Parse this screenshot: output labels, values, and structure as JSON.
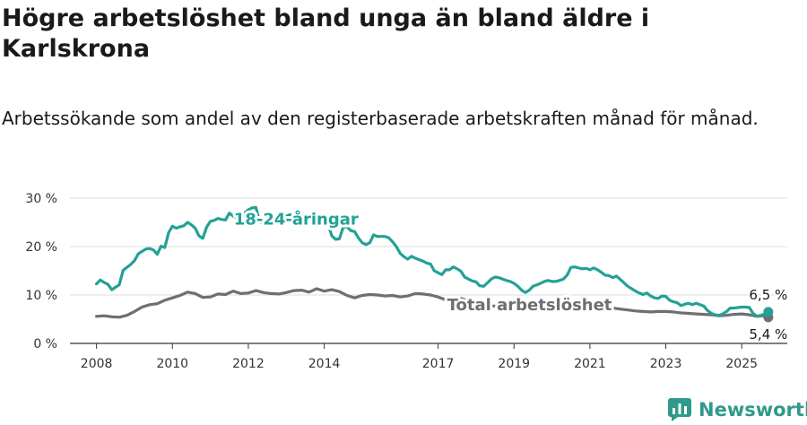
{
  "title": "Högre arbetslöshet bland unga än bland äldre i Karlskrona",
  "subtitle": "Arbetssökande som andel av den registerbaserade arbetskraften månad för månad.",
  "brand": {
    "name": "Newsworthy",
    "icon": "newsworthy-logo-icon",
    "color": "#2f9a8c"
  },
  "chart_data": {
    "type": "line",
    "x_unit": "year",
    "xlim": [
      2007.3,
      2026.2
    ],
    "ylim": [
      0,
      30
    ],
    "y_ticks": [
      0,
      10,
      20,
      30
    ],
    "y_tick_labels": [
      "0 %",
      "10 %",
      "20 %",
      "30 %"
    ],
    "x_ticks": [
      2008,
      2010,
      2012,
      2014,
      2017,
      2019,
      2021,
      2023,
      2025
    ],
    "x_tick_labels": [
      "2008",
      "2010",
      "2012",
      "2014",
      "2017",
      "2019",
      "2021",
      "2023",
      "2025"
    ],
    "grid": true,
    "series": [
      {
        "name": "18-24-åringar",
        "label": "18-24-åringar",
        "color": "#22a295",
        "points": [
          [
            2008.0,
            12.3
          ],
          [
            2008.1,
            13.1
          ],
          [
            2008.2,
            12.6
          ],
          [
            2008.3,
            12.2
          ],
          [
            2008.4,
            11.1
          ],
          [
            2008.5,
            11.6
          ],
          [
            2008.6,
            12.1
          ],
          [
            2008.7,
            15.1
          ],
          [
            2008.8,
            15.7
          ],
          [
            2008.9,
            16.3
          ],
          [
            2009.0,
            17.1
          ],
          [
            2009.1,
            18.5
          ],
          [
            2009.2,
            19.0
          ],
          [
            2009.3,
            19.5
          ],
          [
            2009.4,
            19.6
          ],
          [
            2009.5,
            19.3
          ],
          [
            2009.6,
            18.4
          ],
          [
            2009.7,
            20.1
          ],
          [
            2009.8,
            19.8
          ],
          [
            2009.9,
            22.9
          ],
          [
            2010.0,
            24.2
          ],
          [
            2010.1,
            23.8
          ],
          [
            2010.2,
            24.1
          ],
          [
            2010.3,
            24.3
          ],
          [
            2010.4,
            25.0
          ],
          [
            2010.5,
            24.5
          ],
          [
            2010.6,
            23.8
          ],
          [
            2010.7,
            22.2
          ],
          [
            2010.8,
            21.7
          ],
          [
            2010.9,
            24.0
          ],
          [
            2011.0,
            25.2
          ],
          [
            2011.1,
            25.4
          ],
          [
            2011.2,
            25.8
          ],
          [
            2011.3,
            25.6
          ],
          [
            2011.4,
            25.5
          ],
          [
            2011.5,
            26.9
          ],
          [
            2011.6,
            26.3
          ],
          [
            2011.7,
            25.9
          ],
          [
            2011.8,
            24.3
          ],
          [
            2011.9,
            26.9
          ],
          [
            2012.0,
            27.6
          ],
          [
            2012.1,
            28.0
          ],
          [
            2012.2,
            28.1
          ],
          [
            2012.3,
            25.0
          ],
          [
            2012.4,
            24.8
          ],
          [
            2012.5,
            24.8
          ],
          [
            2012.6,
            24.9
          ],
          [
            2012.7,
            25.3
          ],
          [
            2012.8,
            25.6
          ],
          [
            2012.9,
            26.1
          ],
          [
            2013.0,
            26.3
          ],
          [
            2013.1,
            26.6
          ],
          [
            2013.2,
            26.1
          ],
          [
            2013.3,
            25.8
          ],
          [
            2013.4,
            26.2
          ],
          [
            2013.5,
            25.1
          ],
          [
            2013.6,
            25.3
          ],
          [
            2013.7,
            25.1
          ],
          [
            2013.8,
            24.4
          ],
          [
            2013.9,
            24.9
          ],
          [
            2014.0,
            25.5
          ],
          [
            2014.1,
            24.7
          ],
          [
            2014.2,
            22.2
          ],
          [
            2014.3,
            21.5
          ],
          [
            2014.4,
            21.6
          ],
          [
            2014.5,
            24.0
          ],
          [
            2014.6,
            24.1
          ],
          [
            2014.7,
            23.3
          ],
          [
            2014.8,
            23.1
          ],
          [
            2014.9,
            21.8
          ],
          [
            2015.0,
            20.8
          ],
          [
            2015.1,
            20.4
          ],
          [
            2015.2,
            20.8
          ],
          [
            2015.3,
            22.4
          ],
          [
            2015.4,
            22.1
          ],
          [
            2015.5,
            22.1
          ],
          [
            2015.6,
            22.1
          ],
          [
            2015.7,
            21.8
          ],
          [
            2015.8,
            21.0
          ],
          [
            2015.9,
            20.0
          ],
          [
            2016.0,
            18.6
          ],
          [
            2016.1,
            17.9
          ],
          [
            2016.2,
            17.4
          ],
          [
            2016.3,
            18.0
          ],
          [
            2016.4,
            17.6
          ],
          [
            2016.5,
            17.3
          ],
          [
            2016.6,
            17.0
          ],
          [
            2016.7,
            16.6
          ],
          [
            2016.8,
            16.4
          ],
          [
            2016.9,
            15.0
          ],
          [
            2017.0,
            14.6
          ],
          [
            2017.1,
            14.2
          ],
          [
            2017.2,
            15.2
          ],
          [
            2017.3,
            15.2
          ],
          [
            2017.4,
            15.8
          ],
          [
            2017.5,
            15.4
          ],
          [
            2017.6,
            14.9
          ],
          [
            2017.7,
            13.7
          ],
          [
            2017.8,
            13.3
          ],
          [
            2017.9,
            12.9
          ],
          [
            2018.0,
            12.7
          ],
          [
            2018.1,
            11.9
          ],
          [
            2018.2,
            11.8
          ],
          [
            2018.3,
            12.5
          ],
          [
            2018.4,
            13.3
          ],
          [
            2018.5,
            13.7
          ],
          [
            2018.6,
            13.6
          ],
          [
            2018.7,
            13.3
          ],
          [
            2018.8,
            13.0
          ],
          [
            2018.9,
            12.8
          ],
          [
            2019.0,
            12.4
          ],
          [
            2019.1,
            11.8
          ],
          [
            2019.2,
            11.0
          ],
          [
            2019.3,
            10.5
          ],
          [
            2019.4,
            11.0
          ],
          [
            2019.5,
            11.8
          ],
          [
            2019.6,
            12.1
          ],
          [
            2019.7,
            12.4
          ],
          [
            2019.8,
            12.8
          ],
          [
            2019.9,
            13.0
          ],
          [
            2020.0,
            12.8
          ],
          [
            2020.1,
            12.8
          ],
          [
            2020.2,
            13.0
          ],
          [
            2020.3,
            13.3
          ],
          [
            2020.4,
            14.1
          ],
          [
            2020.5,
            15.7
          ],
          [
            2020.6,
            15.8
          ],
          [
            2020.7,
            15.6
          ],
          [
            2020.8,
            15.4
          ],
          [
            2020.9,
            15.5
          ],
          [
            2021.0,
            15.2
          ],
          [
            2021.1,
            15.6
          ],
          [
            2021.2,
            15.2
          ],
          [
            2021.3,
            14.7
          ],
          [
            2021.4,
            14.1
          ],
          [
            2021.5,
            14.0
          ],
          [
            2021.6,
            13.6
          ],
          [
            2021.7,
            13.9
          ],
          [
            2021.8,
            13.2
          ],
          [
            2021.9,
            12.5
          ],
          [
            2022.0,
            11.8
          ],
          [
            2022.1,
            11.3
          ],
          [
            2022.2,
            10.8
          ],
          [
            2022.3,
            10.4
          ],
          [
            2022.4,
            10.1
          ],
          [
            2022.5,
            10.4
          ],
          [
            2022.6,
            9.8
          ],
          [
            2022.7,
            9.4
          ],
          [
            2022.8,
            9.3
          ],
          [
            2022.9,
            9.8
          ],
          [
            2023.0,
            9.7
          ],
          [
            2023.1,
            8.9
          ],
          [
            2023.2,
            8.6
          ],
          [
            2023.3,
            8.4
          ],
          [
            2023.4,
            7.8
          ],
          [
            2023.5,
            8.1
          ],
          [
            2023.6,
            8.3
          ],
          [
            2023.7,
            8.0
          ],
          [
            2023.8,
            8.3
          ],
          [
            2023.9,
            8.0
          ],
          [
            2024.0,
            7.7
          ],
          [
            2024.1,
            6.8
          ],
          [
            2024.2,
            6.2
          ],
          [
            2024.3,
            5.9
          ],
          [
            2024.4,
            5.8
          ],
          [
            2024.5,
            6.1
          ],
          [
            2024.6,
            6.6
          ],
          [
            2024.7,
            7.3
          ],
          [
            2024.8,
            7.3
          ],
          [
            2024.9,
            7.4
          ],
          [
            2025.0,
            7.5
          ],
          [
            2025.1,
            7.5
          ],
          [
            2025.2,
            7.4
          ],
          [
            2025.3,
            6.2
          ],
          [
            2025.4,
            5.6
          ],
          [
            2025.5,
            5.8
          ],
          [
            2025.6,
            6.1
          ],
          [
            2025.7,
            6.5
          ]
        ]
      },
      {
        "name": "Total arbetslöshet",
        "label": "Total arbetslöshet",
        "color": "#6e6e73",
        "points": [
          [
            2008.0,
            5.6
          ],
          [
            2008.2,
            5.7
          ],
          [
            2008.4,
            5.5
          ],
          [
            2008.6,
            5.4
          ],
          [
            2008.8,
            5.8
          ],
          [
            2009.0,
            6.6
          ],
          [
            2009.2,
            7.5
          ],
          [
            2009.4,
            8.0
          ],
          [
            2009.6,
            8.2
          ],
          [
            2009.8,
            8.9
          ],
          [
            2010.0,
            9.4
          ],
          [
            2010.2,
            9.9
          ],
          [
            2010.4,
            10.6
          ],
          [
            2010.6,
            10.3
          ],
          [
            2010.8,
            9.5
          ],
          [
            2011.0,
            9.6
          ],
          [
            2011.2,
            10.2
          ],
          [
            2011.4,
            10.1
          ],
          [
            2011.6,
            10.8
          ],
          [
            2011.8,
            10.3
          ],
          [
            2012.0,
            10.4
          ],
          [
            2012.2,
            10.9
          ],
          [
            2012.4,
            10.5
          ],
          [
            2012.6,
            10.3
          ],
          [
            2012.8,
            10.2
          ],
          [
            2013.0,
            10.5
          ],
          [
            2013.2,
            10.9
          ],
          [
            2013.4,
            11.0
          ],
          [
            2013.6,
            10.6
          ],
          [
            2013.8,
            11.3
          ],
          [
            2014.0,
            10.8
          ],
          [
            2014.2,
            11.1
          ],
          [
            2014.4,
            10.7
          ],
          [
            2014.6,
            9.9
          ],
          [
            2014.8,
            9.4
          ],
          [
            2015.0,
            9.9
          ],
          [
            2015.2,
            10.1
          ],
          [
            2015.4,
            10.0
          ],
          [
            2015.6,
            9.8
          ],
          [
            2015.8,
            9.9
          ],
          [
            2016.0,
            9.6
          ],
          [
            2016.2,
            9.8
          ],
          [
            2016.4,
            10.3
          ],
          [
            2016.6,
            10.2
          ],
          [
            2016.8,
            10.0
          ],
          [
            2017.0,
            9.6
          ],
          [
            2017.2,
            9.0
          ],
          [
            2017.4,
            9.0
          ],
          [
            2017.6,
            9.3
          ],
          [
            2017.8,
            8.8
          ],
          [
            2018.0,
            8.4
          ],
          [
            2018.2,
            8.1
          ],
          [
            2018.4,
            7.8
          ],
          [
            2018.6,
            7.6
          ],
          [
            2018.8,
            7.5
          ],
          [
            2019.0,
            7.3
          ],
          [
            2019.2,
            7.2
          ],
          [
            2019.4,
            7.0
          ],
          [
            2019.6,
            7.1
          ],
          [
            2019.8,
            7.3
          ],
          [
            2020.0,
            7.4
          ],
          [
            2020.2,
            7.8
          ],
          [
            2020.4,
            8.2
          ],
          [
            2020.6,
            8.4
          ],
          [
            2020.8,
            8.1
          ],
          [
            2021.0,
            7.9
          ],
          [
            2021.2,
            7.7
          ],
          [
            2021.4,
            7.5
          ],
          [
            2021.6,
            7.3
          ],
          [
            2021.8,
            7.1
          ],
          [
            2022.0,
            6.9
          ],
          [
            2022.2,
            6.7
          ],
          [
            2022.4,
            6.6
          ],
          [
            2022.6,
            6.5
          ],
          [
            2022.8,
            6.6
          ],
          [
            2023.0,
            6.6
          ],
          [
            2023.2,
            6.5
          ],
          [
            2023.4,
            6.3
          ],
          [
            2023.6,
            6.2
          ],
          [
            2023.8,
            6.1
          ],
          [
            2024.0,
            6.0
          ],
          [
            2024.2,
            5.9
          ],
          [
            2024.4,
            5.7
          ],
          [
            2024.6,
            5.8
          ],
          [
            2024.8,
            6.0
          ],
          [
            2025.0,
            6.1
          ],
          [
            2025.2,
            5.9
          ],
          [
            2025.4,
            5.6
          ],
          [
            2025.6,
            5.7
          ],
          [
            2025.7,
            5.4
          ]
        ]
      }
    ],
    "end_labels": [
      {
        "series": "18-24-åringar",
        "text": "6,5 %",
        "value": 6.5
      },
      {
        "series": "Total arbetslöshet",
        "text": "5,4 %",
        "value": 5.4
      }
    ]
  }
}
